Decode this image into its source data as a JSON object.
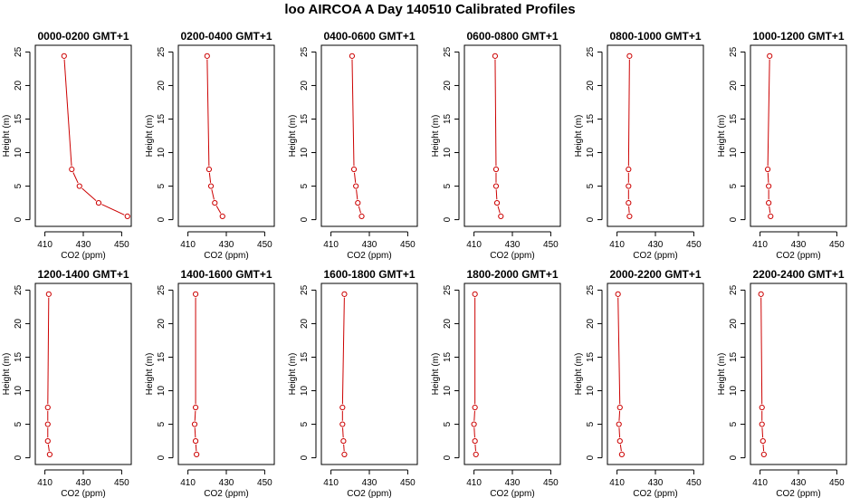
{
  "title": "loo AIRCOA A  Day 140510  Calibrated Profiles",
  "colors": {
    "series": "#cc0000",
    "axis": "#000000"
  },
  "chart_data": [
    {
      "type": "line",
      "title": "0000-0200 GMT+1",
      "xlabel": "CO2 (ppm)",
      "ylabel": "Height (m)",
      "xlim": [
        405,
        455
      ],
      "ylim": [
        -1,
        26
      ],
      "xticks": [
        410,
        430,
        450
      ],
      "yticks": [
        0,
        5,
        10,
        15,
        20,
        25
      ],
      "grid": false,
      "x": [
        453,
        438,
        428,
        424,
        420
      ],
      "y": [
        0.5,
        2.5,
        5,
        7.5,
        24.4
      ]
    },
    {
      "type": "line",
      "title": "0200-0400 GMT+1",
      "xlabel": "CO2 (ppm)",
      "ylabel": "Height (m)",
      "xlim": [
        405,
        455
      ],
      "ylim": [
        -1,
        26
      ],
      "xticks": [
        410,
        430,
        450
      ],
      "yticks": [
        0,
        5,
        10,
        15,
        20,
        25
      ],
      "grid": false,
      "x": [
        428,
        424,
        422,
        421,
        420
      ],
      "y": [
        0.5,
        2.5,
        5,
        7.5,
        24.4
      ]
    },
    {
      "type": "line",
      "title": "0400-0600 GMT+1",
      "xlabel": "CO2 (ppm)",
      "ylabel": "Height (m)",
      "xlim": [
        405,
        455
      ],
      "ylim": [
        -1,
        26
      ],
      "xticks": [
        410,
        430,
        450
      ],
      "yticks": [
        0,
        5,
        10,
        15,
        20,
        25
      ],
      "grid": false,
      "x": [
        426,
        424,
        423,
        422,
        421
      ],
      "y": [
        0.5,
        2.5,
        5,
        7.5,
        24.4
      ]
    },
    {
      "type": "line",
      "title": "0600-0800 GMT+1",
      "xlabel": "CO2 (ppm)",
      "ylabel": "Height (m)",
      "xlim": [
        405,
        455
      ],
      "ylim": [
        -1,
        26
      ],
      "xticks": [
        410,
        430,
        450
      ],
      "yticks": [
        0,
        5,
        10,
        15,
        20,
        25
      ],
      "grid": false,
      "x": [
        424,
        422,
        421.5,
        421.5,
        421
      ],
      "y": [
        0.5,
        2.5,
        5,
        7.5,
        24.4
      ]
    },
    {
      "type": "line",
      "title": "0800-1000 GMT+1",
      "xlabel": "CO2 (ppm)",
      "ylabel": "Height (m)",
      "xlim": [
        405,
        455
      ],
      "ylim": [
        -1,
        26
      ],
      "xticks": [
        410,
        430,
        450
      ],
      "yticks": [
        0,
        5,
        10,
        15,
        20,
        25
      ],
      "grid": false,
      "x": [
        416.5,
        416,
        416,
        416,
        416.5
      ],
      "y": [
        0.5,
        2.5,
        5,
        7.5,
        24.4
      ]
    },
    {
      "type": "line",
      "title": "1000-1200 GMT+1",
      "xlabel": "CO2 (ppm)",
      "ylabel": "Height (m)",
      "xlim": [
        405,
        455
      ],
      "ylim": [
        -1,
        26
      ],
      "xticks": [
        410,
        430,
        450
      ],
      "yticks": [
        0,
        5,
        10,
        15,
        20,
        25
      ],
      "grid": false,
      "x": [
        415.5,
        414.5,
        414.5,
        414,
        415
      ],
      "y": [
        0.5,
        2.5,
        5,
        7.5,
        24.4
      ]
    },
    {
      "type": "line",
      "title": "1200-1400 GMT+1",
      "xlabel": "CO2 (ppm)",
      "ylabel": "Height (m)",
      "xlim": [
        405,
        455
      ],
      "ylim": [
        -1,
        26
      ],
      "xticks": [
        410,
        430,
        450
      ],
      "yticks": [
        0,
        5,
        10,
        15,
        20,
        25
      ],
      "grid": false,
      "x": [
        412.5,
        411.5,
        411.5,
        411.5,
        412
      ],
      "y": [
        0.5,
        2.5,
        5,
        7.5,
        24.4
      ]
    },
    {
      "type": "line",
      "title": "1400-1600 GMT+1",
      "xlabel": "CO2 (ppm)",
      "ylabel": "Height (m)",
      "xlim": [
        405,
        455
      ],
      "ylim": [
        -1,
        26
      ],
      "xticks": [
        410,
        430,
        450
      ],
      "yticks": [
        0,
        5,
        10,
        15,
        20,
        25
      ],
      "grid": false,
      "x": [
        414.5,
        414,
        413.5,
        414,
        414
      ],
      "y": [
        0.5,
        2.5,
        5,
        7.5,
        24.4
      ]
    },
    {
      "type": "line",
      "title": "1600-1800 GMT+1",
      "xlabel": "CO2 (ppm)",
      "ylabel": "Height (m)",
      "xlim": [
        405,
        455
      ],
      "ylim": [
        -1,
        26
      ],
      "xticks": [
        410,
        430,
        450
      ],
      "yticks": [
        0,
        5,
        10,
        15,
        20,
        25
      ],
      "grid": false,
      "x": [
        417,
        416.5,
        416,
        416,
        417
      ],
      "y": [
        0.5,
        2.5,
        5,
        7.5,
        24.4
      ]
    },
    {
      "type": "line",
      "title": "1800-2000 GMT+1",
      "xlabel": "CO2 (ppm)",
      "ylabel": "Height (m)",
      "xlim": [
        405,
        455
      ],
      "ylim": [
        -1,
        26
      ],
      "xticks": [
        410,
        430,
        450
      ],
      "yticks": [
        0,
        5,
        10,
        15,
        20,
        25
      ],
      "grid": false,
      "x": [
        411,
        410.5,
        410,
        410.5,
        410.5
      ],
      "y": [
        0.5,
        2.5,
        5,
        7.5,
        24.4
      ]
    },
    {
      "type": "line",
      "title": "2000-2200 GMT+1",
      "xlabel": "CO2 (ppm)",
      "ylabel": "Height (m)",
      "xlim": [
        405,
        455
      ],
      "ylim": [
        -1,
        26
      ],
      "xticks": [
        410,
        430,
        450
      ],
      "yticks": [
        0,
        5,
        10,
        15,
        20,
        25
      ],
      "grid": false,
      "x": [
        412.5,
        411.5,
        411,
        411.5,
        410.5
      ],
      "y": [
        0.5,
        2.5,
        5,
        7.5,
        24.4
      ]
    },
    {
      "type": "line",
      "title": "2200-2400 GMT+1",
      "xlabel": "CO2 (ppm)",
      "ylabel": "Height (m)",
      "xlim": [
        405,
        455
      ],
      "ylim": [
        -1,
        26
      ],
      "xticks": [
        410,
        430,
        450
      ],
      "yticks": [
        0,
        5,
        10,
        15,
        20,
        25
      ],
      "grid": false,
      "x": [
        412,
        411.5,
        411,
        411,
        410.5
      ],
      "y": [
        0.5,
        2.5,
        5,
        7.5,
        24.4
      ]
    }
  ]
}
